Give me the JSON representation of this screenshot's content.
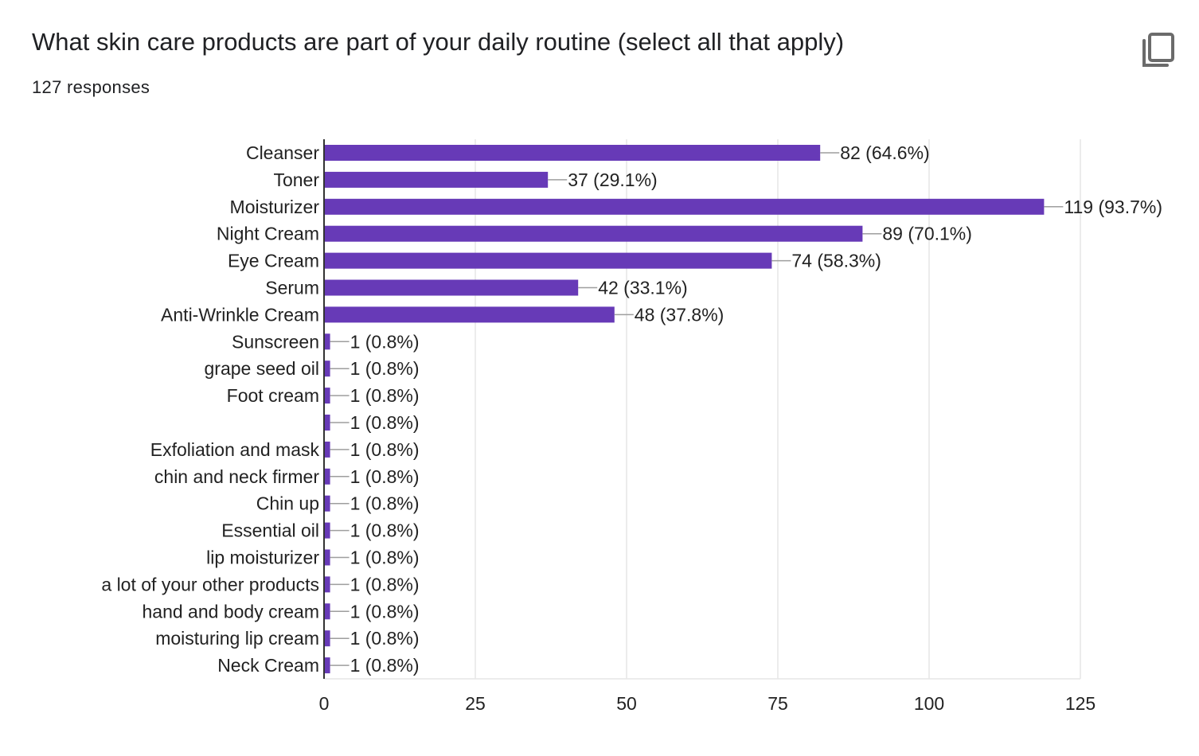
{
  "header": {
    "title": "What skin care products are part of your daily routine (select all that apply)",
    "responses": "127 responses",
    "copy_icon": "copy-icon"
  },
  "colors": {
    "bar": "#673ab7",
    "leader": "#9e9e9e",
    "grid": "#e6e6e6",
    "axis": "#333333"
  },
  "chart_data": {
    "type": "bar",
    "orientation": "horizontal",
    "categories": [
      "Cleanser",
      "Toner",
      "Moisturizer",
      "Night Cream",
      "Eye Cream",
      "Serum",
      "Anti-Wrinkle Cream",
      "Sunscreen",
      "grape seed oil",
      "Foot cream",
      "",
      "Exfoliation and mask",
      "chin and neck firmer",
      "Chin up",
      "Essential oil",
      "lip moisturizer",
      "a lot of your other products",
      "hand and body cream",
      "moisturing lip cream",
      "Neck Cream"
    ],
    "values": [
      82,
      37,
      119,
      89,
      74,
      42,
      48,
      1,
      1,
      1,
      1,
      1,
      1,
      1,
      1,
      1,
      1,
      1,
      1,
      1
    ],
    "data_labels": [
      "82 (64.6%)",
      "37 (29.1%)",
      "119 (93.7%)",
      "89 (70.1%)",
      "74 (58.3%)",
      "42 (33.1%)",
      "48 (37.8%)",
      "1 (0.8%)",
      "1 (0.8%)",
      "1 (0.8%)",
      "1 (0.8%)",
      "1 (0.8%)",
      "1 (0.8%)",
      "1 (0.8%)",
      "1 (0.8%)",
      "1 (0.8%)",
      "1 (0.8%)",
      "1 (0.8%)",
      "1 (0.8%)",
      "1 (0.8%)"
    ],
    "xlim": [
      0,
      125
    ],
    "xticks": [
      0,
      25,
      50,
      75,
      100,
      125
    ],
    "xtick_labels": [
      "0",
      "25",
      "50",
      "75",
      "100",
      "125"
    ],
    "grid": true,
    "legend": "none"
  }
}
